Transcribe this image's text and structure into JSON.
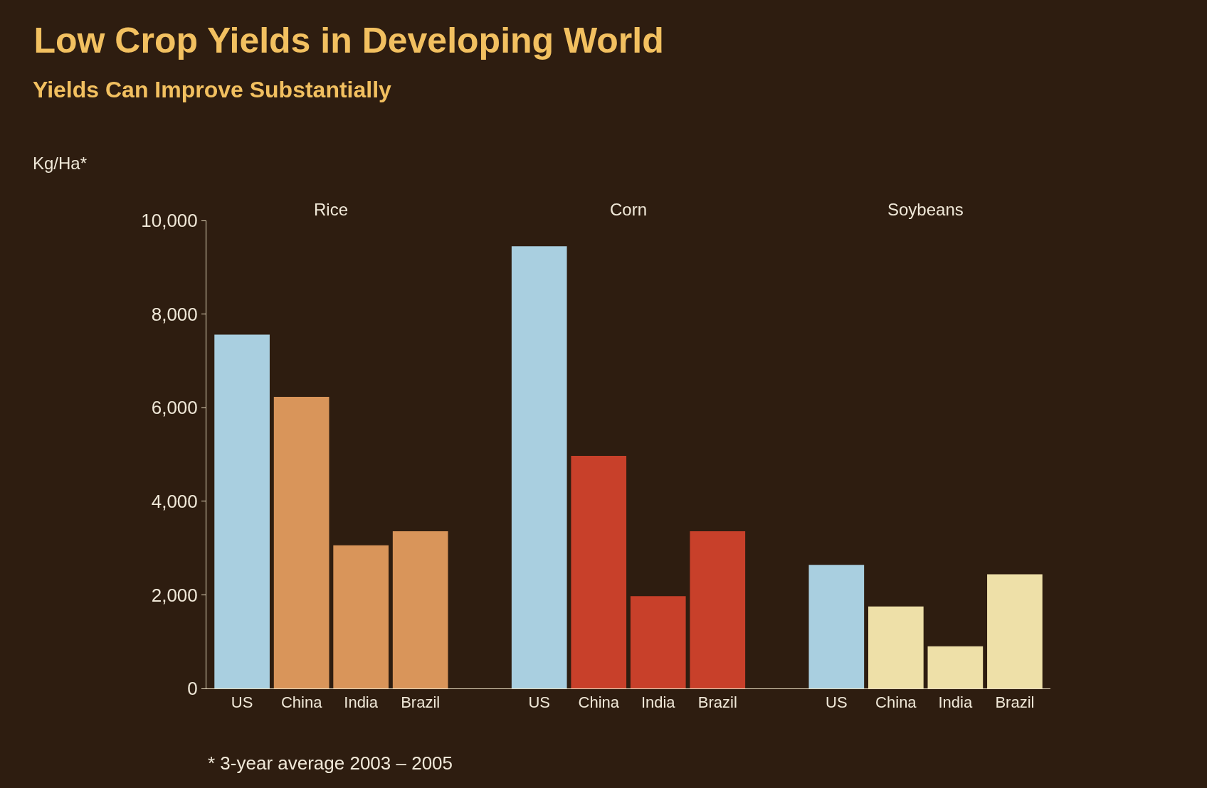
{
  "chart_data": {
    "type": "bar",
    "title": "Low Crop Yields in Developing World",
    "subtitle": "Yields Can Improve Substantially",
    "ylabel": "Kg/Ha*",
    "categories": [
      "US",
      "China",
      "India",
      "Brazil",
      "US",
      "China",
      "India",
      "Brazil",
      "US",
      "China",
      "India",
      "Brazil"
    ],
    "values": [
      7560,
      6230,
      3060,
      3360,
      9450,
      4970,
      1970,
      3360,
      2640,
      1750,
      900,
      2440
    ],
    "colors": [
      "#a9cfe0",
      "#d9955a",
      "#d9955a",
      "#d9955a",
      "#a9cfe0",
      "#c8402a",
      "#c8402a",
      "#c8402a",
      "#a9cfe0",
      "#eee0a8",
      "#eee0a8",
      "#eee0a8"
    ],
    "ylim": [
      0,
      10000
    ],
    "yticks": [
      {
        "value": 0,
        "label": "0"
      },
      {
        "value": 2000,
        "label": "2,000"
      },
      {
        "value": 4000,
        "label": "4,000"
      },
      {
        "value": 6000,
        "label": "6,000"
      },
      {
        "value": 8000,
        "label": "8,000"
      },
      {
        "value": 10000,
        "label": "10,000"
      }
    ],
    "annotations": [
      "Rice",
      "Corn",
      "Soybeans",
      "* 3-year average 2003 – 2005"
    ],
    "grid": false,
    "legend": false
  }
}
